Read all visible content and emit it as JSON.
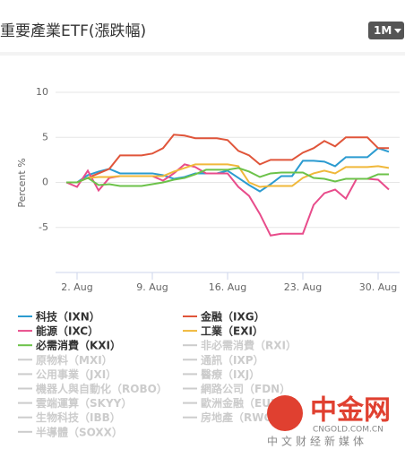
{
  "chart_data": {
    "type": "line",
    "title": "重要產業ETF(漲跌幅)",
    "range_button": "1M",
    "y_label": "Percent %",
    "x": [
      1,
      2,
      3,
      4,
      5,
      6,
      7,
      8,
      9,
      10,
      11,
      12,
      13,
      14,
      15,
      16,
      17,
      18,
      19,
      20,
      21,
      22,
      23,
      24,
      25,
      26,
      27,
      28,
      29,
      30,
      31
    ],
    "xlim": [
      0,
      32
    ],
    "xticks": [
      {
        "value": 2,
        "label": "2. Aug"
      },
      {
        "value": 9,
        "label": "9. Aug"
      },
      {
        "value": 16,
        "label": "16. Aug"
      },
      {
        "value": 23,
        "label": "23. Aug"
      },
      {
        "value": 30,
        "label": "30. Aug"
      }
    ],
    "ylim": [
      -10,
      10
    ],
    "yticks": [
      -5,
      0,
      5,
      10
    ],
    "grid": true,
    "series": [
      {
        "name": "科技（IXN）",
        "color": "#2b9bd0",
        "values": [
          0,
          0,
          0.8,
          1.2,
          1.5,
          1,
          1,
          1,
          1,
          0.8,
          0.4,
          0.6,
          1,
          1,
          1,
          1.3,
          0.5,
          -0.3,
          -1,
          -0.2,
          0.7,
          0.7,
          2.4,
          2.4,
          2.3,
          1.8,
          2.8,
          2.8,
          2.8,
          3.8,
          3.4
        ]
      },
      {
        "name": "金融（IXG）",
        "color": "#e0553a",
        "values": [
          0,
          0,
          0.5,
          1,
          1.5,
          3,
          3,
          3,
          3.2,
          3.8,
          5.3,
          5.2,
          4.9,
          4.9,
          4.9,
          4.7,
          3.5,
          3,
          2,
          2.5,
          2.5,
          2.5,
          3.3,
          3.8,
          4.6,
          4,
          5,
          5,
          5,
          3.8,
          3.8
        ]
      },
      {
        "name": "能源（IXC）",
        "color": "#e84c8b",
        "values": [
          0,
          -0.5,
          1.3,
          -0.9,
          0.5,
          0.7,
          0.7,
          0.7,
          0.7,
          0.2,
          1,
          2,
          1.7,
          1,
          1,
          1,
          -0.5,
          -1.5,
          -3.5,
          -5.9,
          -5.7,
          -5.7,
          -5.7,
          -2.5,
          -1.2,
          -0.8,
          -1.8,
          0.4,
          0.4,
          0.3,
          -0.8
        ]
      },
      {
        "name": "工業（EXI）",
        "color": "#f0b83a",
        "values": [
          0,
          0,
          0.5,
          0.6,
          0.6,
          0.7,
          0.7,
          0.7,
          0.7,
          0.7,
          1.2,
          1.6,
          2,
          2,
          2,
          2,
          1.8,
          0,
          -0.5,
          -0.4,
          -0.4,
          -0.4,
          0.5,
          1,
          1.3,
          1,
          1.7,
          1.7,
          1.7,
          1.8,
          1.6
        ]
      },
      {
        "name": "必需消費（KXI）",
        "color": "#6cc24a",
        "values": [
          0,
          0,
          0.5,
          -0.3,
          -0.2,
          -0.4,
          -0.4,
          -0.4,
          -0.2,
          0,
          0.3,
          0.5,
          0.9,
          1.4,
          1.4,
          1.4,
          1.6,
          1.2,
          0.6,
          1,
          1.1,
          1.1,
          1.1,
          0.5,
          0.4,
          0.1,
          0.4,
          0.4,
          0.4,
          0.9,
          0.9
        ]
      }
    ],
    "legend_hidden": [
      "非必需消費（RXI）",
      "原物料（MXI）",
      "通訊（IXP）",
      "公用事業（JXI）",
      "醫療（IXJ）",
      "機器人與自動化（ROBO）",
      "網路公司（FDN）",
      "雲端運算（SKYY）",
      "歐洲金融（EUFN）",
      "生物科技（IBB）",
      "房地產（RWO）",
      "半導體（SOXX）"
    ],
    "watermark": {
      "brand": "中金网",
      "site": "CNGOLD.COM.CN",
      "slogan": "中文财经新媒体"
    }
  }
}
